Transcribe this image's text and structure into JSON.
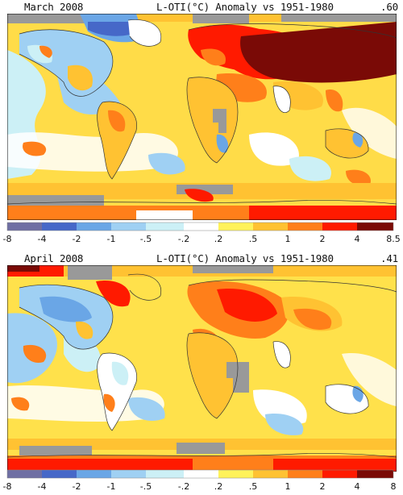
{
  "panels": [
    {
      "month": "March 2008",
      "title": "L-OTI(°C) Anomaly vs 1951-1980",
      "global_mean": ".60",
      "legend_ticks": [
        "-8",
        "-4",
        "-2",
        "-1",
        "-.5",
        "-.2",
        ".2",
        ".5",
        "1",
        "2",
        "4",
        "8.5"
      ]
    },
    {
      "month": "April 2008",
      "title": "L-OTI(°C) Anomaly vs 1951-1980",
      "global_mean": ".41",
      "legend_ticks": [
        "-8",
        "-4",
        "-2",
        "-1",
        "-.5",
        "-.2",
        ".2",
        ".5",
        "1",
        "2",
        "4",
        "8"
      ]
    }
  ],
  "colors": {
    "bins": [
      "#6f6fa3",
      "#4668c8",
      "#6aa6e6",
      "#9fd0f3",
      "#ccf0f6",
      "#ffffff",
      "#fff25a",
      "#ffc232",
      "#ff7f1a",
      "#ff1a00",
      "#7a0a06"
    ],
    "missing": "#999999",
    "coastline": "#333333"
  }
}
